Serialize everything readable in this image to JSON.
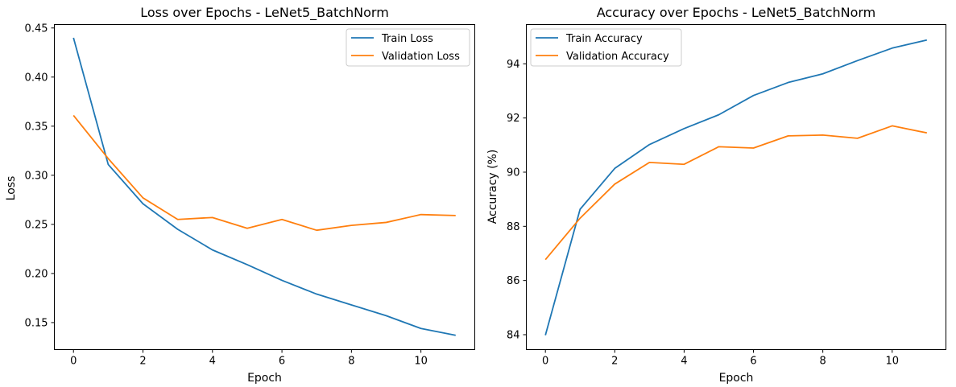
{
  "colors": {
    "train": "#1f77b4",
    "validation": "#ff7f0e"
  },
  "chart_data": [
    {
      "type": "line",
      "title": "Loss over Epochs - LeNet5_BatchNorm",
      "xlabel": "Epoch",
      "ylabel": "Loss",
      "x": [
        0,
        1,
        2,
        3,
        4,
        5,
        6,
        7,
        8,
        9,
        10,
        11
      ],
      "xlim": [
        -0.55,
        11.55
      ],
      "ylim": [
        0.1225,
        0.4535
      ],
      "xticks": [
        0,
        2,
        4,
        6,
        8,
        10
      ],
      "xtick_labels": [
        "0",
        "2",
        "4",
        "6",
        "8",
        "10"
      ],
      "yticks": [
        0.15,
        0.2,
        0.25,
        0.3,
        0.35,
        0.4,
        0.45
      ],
      "ytick_labels": [
        "0.15",
        "0.20",
        "0.25",
        "0.30",
        "0.35",
        "0.40",
        "0.45"
      ],
      "legend_position": "top-right",
      "grid": false,
      "series": [
        {
          "name": "Train Loss",
          "color": "#1f77b4",
          "values": [
            0.44,
            0.311,
            0.271,
            0.245,
            0.224,
            0.209,
            0.193,
            0.179,
            0.168,
            0.157,
            0.144,
            0.137
          ]
        },
        {
          "name": "Validation Loss",
          "color": "#ff7f0e",
          "values": [
            0.361,
            0.317,
            0.277,
            0.255,
            0.257,
            0.246,
            0.255,
            0.244,
            0.249,
            0.252,
            0.26,
            0.259
          ]
        }
      ]
    },
    {
      "type": "line",
      "title": "Accuracy over Epochs - LeNet5_BatchNorm",
      "xlabel": "Epoch",
      "ylabel": "Accuracy (%)",
      "x": [
        0,
        1,
        2,
        3,
        4,
        5,
        6,
        7,
        8,
        9,
        10,
        11
      ],
      "xlim": [
        -0.55,
        11.55
      ],
      "ylim": [
        83.45,
        95.45
      ],
      "xticks": [
        0,
        2,
        4,
        6,
        8,
        10
      ],
      "xtick_labels": [
        "0",
        "2",
        "4",
        "6",
        "8",
        "10"
      ],
      "yticks": [
        84,
        86,
        88,
        90,
        92,
        94
      ],
      "ytick_labels": [
        "84",
        "86",
        "88",
        "90",
        "92",
        "94"
      ],
      "legend_position": "top-left",
      "grid": false,
      "series": [
        {
          "name": "Train Accuracy",
          "color": "#1f77b4",
          "values": [
            83.98,
            88.63,
            90.14,
            91.02,
            91.61,
            92.12,
            92.83,
            93.31,
            93.63,
            94.12,
            94.58,
            94.88
          ]
        },
        {
          "name": "Validation Accuracy",
          "color": "#ff7f0e",
          "values": [
            86.77,
            88.3,
            89.56,
            90.36,
            90.29,
            90.94,
            90.89,
            91.34,
            91.37,
            91.25,
            91.71,
            91.45
          ]
        }
      ]
    }
  ]
}
